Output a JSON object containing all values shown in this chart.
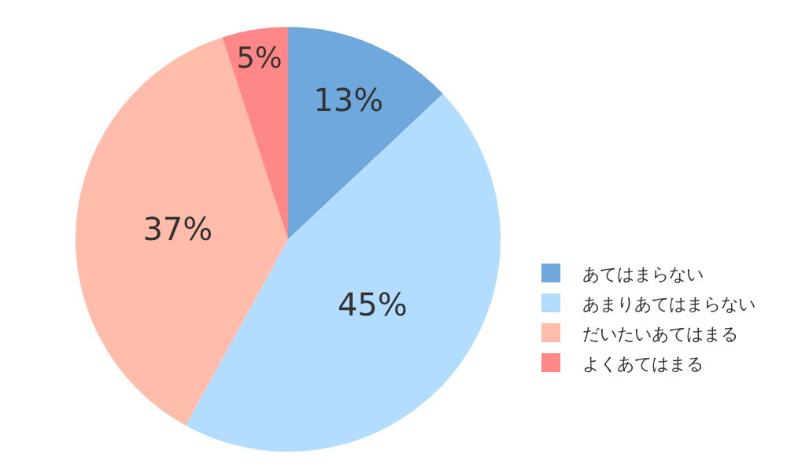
{
  "chart_data": {
    "type": "pie",
    "categories": [
      "あてはまらない",
      "あまりあてはまらない",
      "だいたいあてはまる",
      "よくあてはまる"
    ],
    "values": [
      13,
      45,
      37,
      5
    ],
    "value_labels": [
      "13%",
      "45%",
      "37%",
      "5%"
    ],
    "colors": [
      "#6fa8dc",
      "#b3ddff",
      "#ffbcab",
      "#ff8787"
    ],
    "legend": "bottom right"
  }
}
